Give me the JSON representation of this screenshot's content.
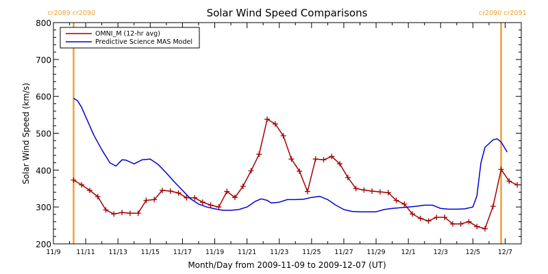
{
  "chart_data": {
    "type": "line",
    "title": "Solar Wind Speed Comparisons",
    "xlabel": "Month/Day from 2009-11-09 to 2009-12-07 (UT)",
    "ylabel": "Solar Wind Speed (km/s)",
    "xlim": [
      "2009-11-09",
      "2009-12-07"
    ],
    "ylim": [
      200,
      800
    ],
    "y_ticks": [
      200,
      300,
      400,
      500,
      600,
      700,
      800
    ],
    "x_ticks": [
      {
        "date": "2009-11-09",
        "label": "11/9"
      },
      {
        "date": "2009-11-11",
        "label": "11/11"
      },
      {
        "date": "2009-11-13",
        "label": "11/13"
      },
      {
        "date": "2009-11-15",
        "label": "11/15"
      },
      {
        "date": "2009-11-17",
        "label": "11/17"
      },
      {
        "date": "2009-11-19",
        "label": "11/19"
      },
      {
        "date": "2009-11-21",
        "label": "11/21"
      },
      {
        "date": "2009-11-23",
        "label": "11/23"
      },
      {
        "date": "2009-11-25",
        "label": "11/25"
      },
      {
        "date": "2009-11-27",
        "label": "11/27"
      },
      {
        "date": "2009-11-29",
        "label": "11/29"
      },
      {
        "date": "2009-12-01",
        "label": "12/1"
      },
      {
        "date": "2009-12-03",
        "label": "12/3"
      },
      {
        "date": "2009-12-05",
        "label": "12/5"
      },
      {
        "date": "2009-12-07",
        "label": "12/7"
      }
    ],
    "grid": false,
    "legend": {
      "placement": "top-left"
    },
    "rotation_markers": [
      {
        "date": "2009-11-10 06:00",
        "label": "cr2089 cr2090",
        "color": "#f0a030",
        "label_side": "left"
      },
      {
        "date": "2009-12-06 18:00",
        "label": "cr2090 cr2091",
        "color": "#f0a030",
        "label_side": "right"
      }
    ],
    "series": [
      {
        "name": "OMNI_M (12-hr avg)",
        "color": "#a00000",
        "marker": "plus",
        "points": [
          [
            "2009-11-10 06:00",
            373
          ],
          [
            "2009-11-10 18:00",
            360
          ],
          [
            "2009-11-11 06:00",
            345
          ],
          [
            "2009-11-11 18:00",
            328
          ],
          [
            "2009-11-12 06:00",
            292
          ],
          [
            "2009-11-12 18:00",
            281
          ],
          [
            "2009-11-13 06:00",
            285
          ],
          [
            "2009-11-13 18:00",
            283
          ],
          [
            "2009-11-14 06:00",
            283
          ],
          [
            "2009-11-14 18:00",
            318
          ],
          [
            "2009-11-15 06:00",
            320
          ],
          [
            "2009-11-15 18:00",
            345
          ],
          [
            "2009-11-16 06:00",
            343
          ],
          [
            "2009-11-16 18:00",
            338
          ],
          [
            "2009-11-17 06:00",
            325
          ],
          [
            "2009-11-17 18:00",
            325
          ],
          [
            "2009-11-18 06:00",
            313
          ],
          [
            "2009-11-18 18:00",
            305
          ],
          [
            "2009-11-19 06:00",
            300
          ],
          [
            "2009-11-19 18:00",
            342
          ],
          [
            "2009-11-20 06:00",
            326
          ],
          [
            "2009-11-20 18:00",
            356
          ],
          [
            "2009-11-21 06:00",
            398
          ],
          [
            "2009-11-21 18:00",
            443
          ],
          [
            "2009-11-22 06:00",
            538
          ],
          [
            "2009-11-22 18:00",
            525
          ],
          [
            "2009-11-23 06:00",
            493
          ],
          [
            "2009-11-23 18:00",
            430
          ],
          [
            "2009-11-24 06:00",
            397
          ],
          [
            "2009-11-24 18:00",
            342
          ],
          [
            "2009-11-25 06:00",
            430
          ],
          [
            "2009-11-25 18:00",
            428
          ],
          [
            "2009-11-26 06:00",
            437
          ],
          [
            "2009-11-26 18:00",
            417
          ],
          [
            "2009-11-27 06:00",
            380
          ],
          [
            "2009-11-27 18:00",
            350
          ],
          [
            "2009-11-28 06:00",
            346
          ],
          [
            "2009-11-28 18:00",
            343
          ],
          [
            "2009-11-29 06:00",
            341
          ],
          [
            "2009-11-29 18:00",
            339
          ],
          [
            "2009-11-30 06:00",
            318
          ],
          [
            "2009-11-30 18:00",
            308
          ],
          [
            "2009-12-01 06:00",
            281
          ],
          [
            "2009-12-01 18:00",
            269
          ],
          [
            "2009-12-02 06:00",
            262
          ],
          [
            "2009-12-02 18:00",
            272
          ],
          [
            "2009-12-03 06:00",
            272
          ],
          [
            "2009-12-03 18:00",
            254
          ],
          [
            "2009-12-04 06:00",
            254
          ],
          [
            "2009-12-04 18:00",
            260
          ],
          [
            "2009-12-05 06:00",
            247
          ],
          [
            "2009-12-05 18:00",
            241
          ],
          [
            "2009-12-06 06:00",
            302
          ],
          [
            "2009-12-06 18:00",
            402
          ],
          [
            "2009-12-07 06:00",
            370
          ],
          [
            "2009-12-07 18:00",
            360
          ]
        ]
      },
      {
        "name": "Predictive Science MAS Model",
        "color": "#0000d0",
        "marker": "none",
        "points": [
          [
            "2009-11-10 06:00",
            595
          ],
          [
            "2009-11-10 12:00",
            588
          ],
          [
            "2009-11-10 18:00",
            570
          ],
          [
            "2009-11-11 00:00",
            545
          ],
          [
            "2009-11-11 12:00",
            495
          ],
          [
            "2009-11-12 00:00",
            455
          ],
          [
            "2009-11-12 12:00",
            420
          ],
          [
            "2009-11-12 21:00",
            411
          ],
          [
            "2009-11-13 06:00",
            428
          ],
          [
            "2009-11-13 12:00",
            427
          ],
          [
            "2009-11-14 00:00",
            417
          ],
          [
            "2009-11-14 12:00",
            428
          ],
          [
            "2009-11-15 00:00",
            430
          ],
          [
            "2009-11-15 12:00",
            415
          ],
          [
            "2009-11-16 00:00",
            392
          ],
          [
            "2009-11-16 12:00",
            368
          ],
          [
            "2009-11-17 00:00",
            345
          ],
          [
            "2009-11-17 12:00",
            322
          ],
          [
            "2009-11-18 00:00",
            308
          ],
          [
            "2009-11-18 12:00",
            300
          ],
          [
            "2009-11-19 00:00",
            295
          ],
          [
            "2009-11-19 12:00",
            291
          ],
          [
            "2009-11-20 00:00",
            291
          ],
          [
            "2009-11-20 12:00",
            293
          ],
          [
            "2009-11-21 00:00",
            300
          ],
          [
            "2009-11-21 12:00",
            315
          ],
          [
            "2009-11-21 21:00",
            322
          ],
          [
            "2009-11-22 06:00",
            318
          ],
          [
            "2009-11-22 12:00",
            311
          ],
          [
            "2009-11-23 00:00",
            313
          ],
          [
            "2009-11-23 12:00",
            320
          ],
          [
            "2009-11-24 00:00",
            320
          ],
          [
            "2009-11-24 12:00",
            321
          ],
          [
            "2009-11-25 00:00",
            326
          ],
          [
            "2009-11-25 12:00",
            329
          ],
          [
            "2009-11-26 00:00",
            320
          ],
          [
            "2009-11-26 12:00",
            305
          ],
          [
            "2009-11-27 00:00",
            293
          ],
          [
            "2009-11-27 12:00",
            288
          ],
          [
            "2009-11-28 00:00",
            287
          ],
          [
            "2009-11-28 12:00",
            287
          ],
          [
            "2009-11-29 00:00",
            287
          ],
          [
            "2009-11-29 12:00",
            293
          ],
          [
            "2009-11-30 00:00",
            296
          ],
          [
            "2009-11-30 12:00",
            298
          ],
          [
            "2009-12-01 00:00",
            300
          ],
          [
            "2009-12-01 12:00",
            302
          ],
          [
            "2009-12-02 00:00",
            305
          ],
          [
            "2009-12-02 12:00",
            305
          ],
          [
            "2009-12-03 00:00",
            296
          ],
          [
            "2009-12-03 12:00",
            294
          ],
          [
            "2009-12-04 00:00",
            294
          ],
          [
            "2009-12-04 12:00",
            295
          ],
          [
            "2009-12-05 00:00",
            300
          ],
          [
            "2009-12-05 06:00",
            330
          ],
          [
            "2009-12-05 12:00",
            420
          ],
          [
            "2009-12-05 18:00",
            462
          ],
          [
            "2009-12-06 06:00",
            482
          ],
          [
            "2009-12-06 12:00",
            485
          ],
          [
            "2009-12-06 18:00",
            476
          ],
          [
            "2009-12-07 03:00",
            449
          ]
        ]
      }
    ]
  }
}
